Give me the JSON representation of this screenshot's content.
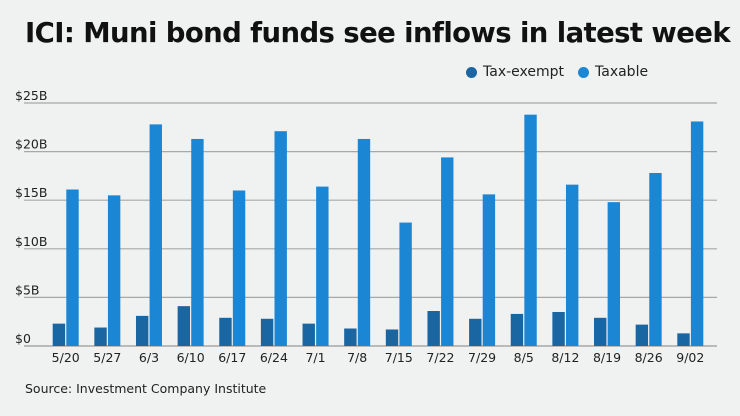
{
  "chart_data": {
    "type": "bar",
    "title": "ICI: Muni bond funds see inflows in latest week",
    "xlabel": "",
    "ylabel": "",
    "ylim": [
      0,
      25
    ],
    "yticks": [
      0,
      5,
      10,
      15,
      20,
      25
    ],
    "ytick_labels": [
      "$0",
      "$5B",
      "$10B",
      "$15B",
      "$20B",
      "$25B"
    ],
    "grid": true,
    "legend_position": "top-right",
    "categories": [
      "5/20",
      "5/27",
      "6/3",
      "6/10",
      "6/17",
      "6/24",
      "7/1",
      "7/8",
      "7/15",
      "7/22",
      "7/29",
      "8/5",
      "8/12",
      "8/19",
      "8/26",
      "9/02"
    ],
    "series": [
      {
        "name": "Tax-exempt",
        "color": "#1a66a2",
        "values": [
          2.3,
          1.9,
          3.1,
          4.1,
          2.9,
          2.8,
          2.3,
          1.8,
          1.7,
          3.6,
          2.8,
          3.3,
          3.5,
          2.9,
          2.2,
          1.3
        ]
      },
      {
        "name": "Taxable",
        "color": "#1b87d4",
        "values": [
          16.1,
          15.5,
          22.8,
          21.3,
          16.0,
          22.1,
          16.4,
          21.3,
          12.7,
          19.4,
          15.6,
          23.8,
          16.6,
          14.8,
          17.8,
          23.1
        ]
      }
    ],
    "source": "Source: Investment Company Institute"
  }
}
